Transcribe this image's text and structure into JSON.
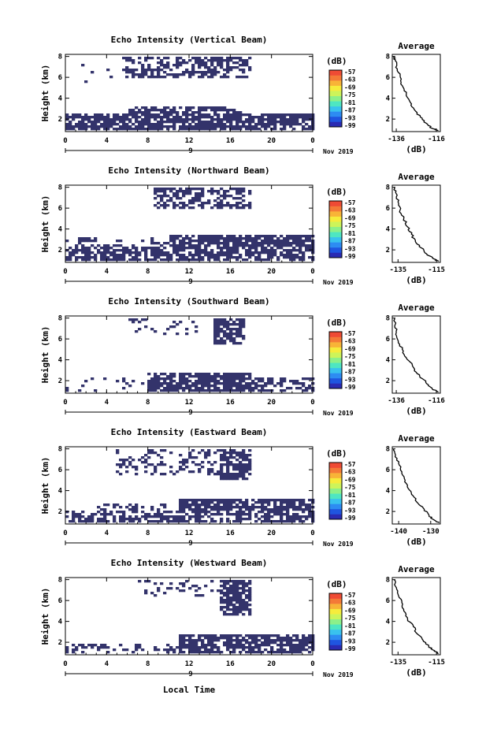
{
  "figure": {
    "xlabel": "Local Time",
    "date_label": "Nov 2019",
    "day_label": "9",
    "ylabel": "Height (km)",
    "unit_label": "(dB)",
    "side_title": "Average",
    "side_xlabel": "(dB)",
    "colorbar_ticks": [
      "-57",
      "-63",
      "-69",
      "-75",
      "-81",
      "-87",
      "-93",
      "-99"
    ],
    "colors": {
      "echo": "#33336b",
      "colorbar": [
        "#2a2bb3",
        "#1f55e0",
        "#2d8cf2",
        "#39c2ee",
        "#4ee6c2",
        "#8cf08a",
        "#cdf45a",
        "#f6ec3c",
        "#f8b437",
        "#f47a37",
        "#ef4b34"
      ]
    }
  },
  "chart_data": [
    {
      "type": "heatmap",
      "title": "Echo Intensity (Vertical Beam)",
      "x_ticks": [
        "0",
        "4",
        "8",
        "12",
        "16",
        "20",
        "0"
      ],
      "y_ticks": [
        "2",
        "4",
        "6",
        "8"
      ],
      "xlim": [
        0,
        24
      ],
      "ylim": [
        0.8,
        8.2
      ],
      "echo_regions": [
        {
          "x": [
            0,
            24
          ],
          "y": [
            1.0,
            2.6
          ],
          "density": 0.8
        },
        {
          "x": [
            6,
            17
          ],
          "y": [
            2.6,
            3.2
          ],
          "density": 0.6
        },
        {
          "x": [
            5.5,
            18
          ],
          "y": [
            6.0,
            8.0
          ],
          "density": 0.55
        },
        {
          "x": [
            0.5,
            5
          ],
          "y": [
            5.5,
            7.5
          ],
          "density": 0.05
        }
      ],
      "average_profile": {
        "title": "Average",
        "x_ticks": [
          "-136",
          "-116"
        ],
        "xlim": [
          -138,
          -114
        ],
        "y_ticks": [
          "2",
          "4",
          "6",
          "8"
        ],
        "x": [
          -137,
          -136.5,
          -135.5,
          -134,
          -133,
          -131,
          -129,
          -127,
          -124,
          -121,
          -118,
          -115
        ],
        "y": [
          8,
          7.6,
          6.8,
          6.0,
          5.2,
          4.4,
          3.6,
          2.9,
          2.2,
          1.6,
          1.1,
          0.9
        ]
      }
    },
    {
      "type": "heatmap",
      "title": "Echo Intensity (Northward Beam)",
      "x_ticks": [
        "0",
        "4",
        "8",
        "12",
        "16",
        "20",
        "0"
      ],
      "y_ticks": [
        "2",
        "4",
        "6",
        "8"
      ],
      "xlim": [
        0,
        24
      ],
      "ylim": [
        0.8,
        8.2
      ],
      "echo_regions": [
        {
          "x": [
            0,
            24
          ],
          "y": [
            1.0,
            2.4
          ],
          "density": 0.7
        },
        {
          "x": [
            10,
            24
          ],
          "y": [
            2.4,
            3.4
          ],
          "density": 0.85
        },
        {
          "x": [
            8.5,
            18
          ],
          "y": [
            6.0,
            8.0
          ],
          "density": 0.5
        },
        {
          "x": [
            0,
            10
          ],
          "y": [
            2.4,
            3.2
          ],
          "density": 0.25
        }
      ],
      "average_profile": {
        "title": "Average",
        "x_ticks": [
          "-135",
          "-115"
        ],
        "xlim": [
          -138,
          -113
        ],
        "y_ticks": [
          "2",
          "4",
          "6",
          "8"
        ],
        "x": [
          -137,
          -136,
          -135,
          -134,
          -132,
          -130,
          -128,
          -126,
          -123,
          -120,
          -117,
          -114
        ],
        "y": [
          8,
          7.4,
          6.6,
          5.8,
          5.0,
          4.2,
          3.5,
          2.8,
          2.2,
          1.6,
          1.2,
          0.9
        ]
      }
    },
    {
      "type": "heatmap",
      "title": "Echo Intensity (Southward Beam)",
      "x_ticks": [
        "0",
        "4",
        "8",
        "12",
        "16",
        "20",
        "0"
      ],
      "y_ticks": [
        "2",
        "4",
        "6",
        "8"
      ],
      "xlim": [
        0,
        24
      ],
      "ylim": [
        0.8,
        8.2
      ],
      "echo_regions": [
        {
          "x": [
            8,
            18
          ],
          "y": [
            1.0,
            2.8
          ],
          "density": 0.8
        },
        {
          "x": [
            0,
            8
          ],
          "y": [
            1.0,
            2.4
          ],
          "density": 0.15
        },
        {
          "x": [
            18,
            24
          ],
          "y": [
            1.0,
            2.4
          ],
          "density": 0.5
        },
        {
          "x": [
            14.5,
            17.5
          ],
          "y": [
            5.5,
            8.0
          ],
          "density": 0.75
        },
        {
          "x": [
            6,
            13
          ],
          "y": [
            6.5,
            8.0
          ],
          "density": 0.2
        }
      ],
      "average_profile": {
        "title": "Average",
        "x_ticks": [
          "-136",
          "-116"
        ],
        "xlim": [
          -138,
          -114
        ],
        "y_ticks": [
          "2",
          "4",
          "6",
          "8"
        ],
        "x": [
          -137,
          -136.5,
          -136,
          -135,
          -133,
          -131,
          -128,
          -126,
          -123,
          -120,
          -118,
          -115
        ],
        "y": [
          8,
          7.4,
          6.6,
          5.8,
          5.0,
          4.2,
          3.5,
          2.8,
          2.2,
          1.6,
          1.2,
          0.9
        ]
      }
    },
    {
      "type": "heatmap",
      "title": "Echo Intensity (Eastward Beam)",
      "x_ticks": [
        "0",
        "4",
        "8",
        "12",
        "16",
        "20",
        "0"
      ],
      "y_ticks": [
        "2",
        "4",
        "6",
        "8"
      ],
      "xlim": [
        0,
        24
      ],
      "ylim": [
        0.8,
        8.2
      ],
      "echo_regions": [
        {
          "x": [
            0,
            24
          ],
          "y": [
            1.0,
            2.0
          ],
          "density": 0.6
        },
        {
          "x": [
            11,
            24
          ],
          "y": [
            2.0,
            3.2
          ],
          "density": 0.75
        },
        {
          "x": [
            3,
            10
          ],
          "y": [
            2.0,
            2.8
          ],
          "density": 0.35
        },
        {
          "x": [
            15,
            18
          ],
          "y": [
            5.0,
            8.0
          ],
          "density": 0.7
        },
        {
          "x": [
            5,
            15
          ],
          "y": [
            5.5,
            8.0
          ],
          "density": 0.25
        }
      ],
      "average_profile": {
        "title": "Average",
        "x_ticks": [
          "-140",
          "-130"
        ],
        "xlim": [
          -142,
          -127
        ],
        "y_ticks": [
          "2",
          "4",
          "6",
          "8"
        ],
        "x": [
          -141.5,
          -141,
          -140,
          -139,
          -138,
          -137,
          -135.5,
          -134,
          -132,
          -130.5,
          -129,
          -127.5
        ],
        "y": [
          8,
          7.4,
          6.6,
          5.8,
          5.0,
          4.2,
          3.5,
          2.8,
          2.2,
          1.6,
          1.2,
          0.9
        ]
      }
    },
    {
      "type": "heatmap",
      "title": "Echo Intensity (Westward Beam)",
      "x_ticks": [
        "0",
        "4",
        "8",
        "12",
        "16",
        "20",
        "0"
      ],
      "y_ticks": [
        "2",
        "4",
        "6",
        "8"
      ],
      "xlim": [
        0,
        24
      ],
      "ylim": [
        0.8,
        8.2
      ],
      "echo_regions": [
        {
          "x": [
            0,
            24
          ],
          "y": [
            1.0,
            1.8
          ],
          "density": 0.35
        },
        {
          "x": [
            11,
            24
          ],
          "y": [
            1.0,
            2.8
          ],
          "density": 0.75
        },
        {
          "x": [
            15,
            18
          ],
          "y": [
            4.5,
            8.0
          ],
          "density": 0.75
        },
        {
          "x": [
            7,
            15
          ],
          "y": [
            6.5,
            8.0
          ],
          "density": 0.15
        }
      ],
      "average_profile": {
        "title": "Average",
        "x_ticks": [
          "-135",
          "-115"
        ],
        "xlim": [
          -138,
          -113
        ],
        "y_ticks": [
          "2",
          "4",
          "6",
          "8"
        ],
        "x": [
          -137,
          -136.5,
          -135,
          -133,
          -132,
          -130,
          -127,
          -125,
          -122,
          -119,
          -116,
          -114
        ],
        "y": [
          8,
          7.4,
          6.6,
          5.8,
          5.0,
          4.2,
          3.5,
          2.8,
          2.2,
          1.6,
          1.2,
          0.9
        ]
      }
    }
  ]
}
